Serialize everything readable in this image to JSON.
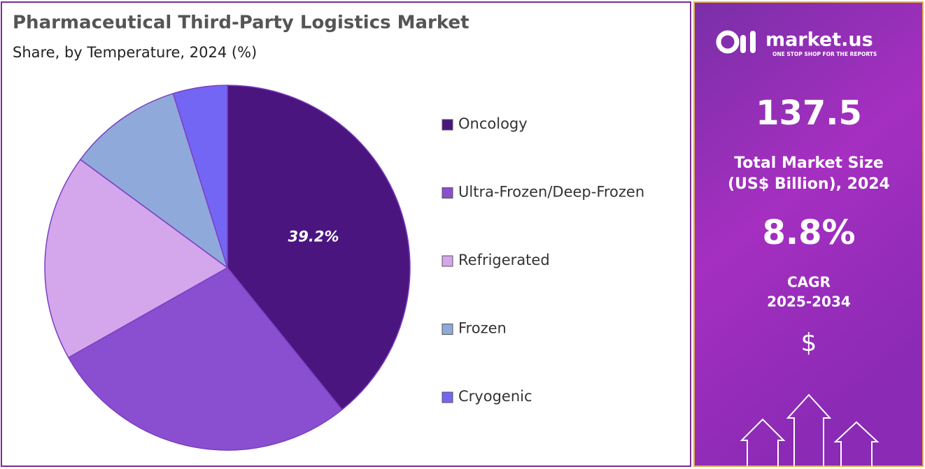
{
  "chart_data": {
    "type": "pie",
    "title": "Pharmaceutical Third-Party Logistics Market",
    "subtitle": "Share, by Temperature, 2024 (%)",
    "categories": [
      "Oncology",
      "Ultra-Frozen/Deep-Frozen",
      "Refrigerated",
      "Frozen",
      "Cryogenic"
    ],
    "values": [
      39.2,
      27.6,
      18.3,
      10.1,
      4.8
    ],
    "value_labels": [
      "39.2%",
      null,
      null,
      null,
      null
    ],
    "colors": [
      "#4b1580",
      "#8a4fd0",
      "#d4a6ec",
      "#8fa9db",
      "#7466f5"
    ],
    "legend": "right"
  },
  "sidebar": {
    "logo": "market.us",
    "tagline": "ONE STOP SHOP FOR THE REPORTS",
    "market_size": "137.5",
    "market_size_label": [
      "Total Market Size",
      "(US$ Billion), 2024"
    ],
    "cagr": "8.8%",
    "cagr_label": [
      "CAGR",
      "2025-2034"
    ],
    "currency": "$"
  }
}
